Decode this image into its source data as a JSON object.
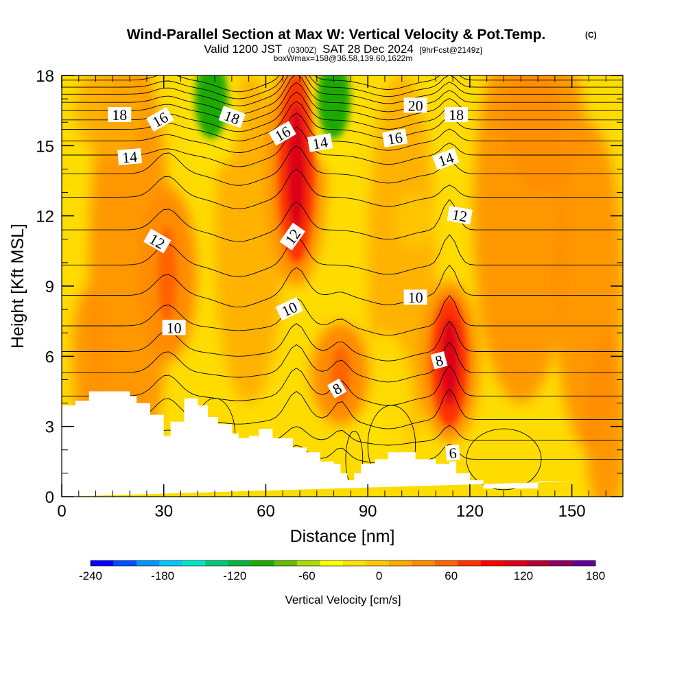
{
  "title": "Wind-Parallel Section at Max W: Vertical Velocity & Pot.Temp.",
  "title_mark": "(C)",
  "subtitle": {
    "valid": "Valid 1200 JST",
    "utc": "(0300Z)",
    "date": "SAT 28 Dec 2024",
    "fcst": "[9hrFcst@2149z]"
  },
  "box_line": "boxWmax=158@36.58,139.60,1622m",
  "chart_data": {
    "type": "heatmap",
    "xlabel": "Distance [nm]",
    "ylabel": "Height [Kft MSL]",
    "xlim": [
      0,
      165
    ],
    "ylim": [
      0,
      18
    ],
    "x_ticks": [
      0,
      30,
      60,
      90,
      120,
      150
    ],
    "y_ticks": [
      0,
      3,
      6,
      9,
      12,
      15,
      18
    ],
    "colorbar": {
      "label": "Vertical Velocity [cm/s]",
      "tick_labels": [
        -240,
        -180,
        -120,
        -60,
        0,
        60,
        120,
        180
      ],
      "range": [
        -240,
        180
      ],
      "colors": [
        "#0000ff",
        "#0050ff",
        "#0096ff",
        "#00c8ff",
        "#00e6c8",
        "#00c878",
        "#00b43c",
        "#1eaa00",
        "#64be00",
        "#aadc00",
        "#ffff00",
        "#ffe100",
        "#ffc800",
        "#ffaa00",
        "#ff8c00",
        "#ff6400",
        "#ff3200",
        "#ff0000",
        "#dc0014",
        "#b40032",
        "#8c0064",
        "#640096"
      ]
    },
    "updraft_cores": [
      {
        "x": 31,
        "y_range": [
          6.5,
          12.5
        ],
        "peak": 60
      },
      {
        "x": 69,
        "y_range": [
          10.0,
          18.0
        ],
        "peak": 110
      },
      {
        "x": 82,
        "y_range": [
          3.5,
          7.0
        ],
        "peak": 60
      },
      {
        "x": 114,
        "y_range": [
          3.0,
          8.5
        ],
        "peak": 120
      }
    ],
    "downdraft_areas": [
      {
        "x": 44,
        "y_range": [
          15.0,
          18.0
        ],
        "peak": -90
      },
      {
        "x": 80,
        "y_range": [
          15.0,
          18.0
        ],
        "peak": -90
      }
    ],
    "terrain": {
      "x": [
        0,
        4,
        4,
        8,
        8,
        20,
        20,
        22,
        22,
        26,
        26,
        30,
        30,
        32,
        32,
        36,
        36,
        40,
        40,
        43,
        43,
        46,
        46,
        50,
        50,
        52,
        52,
        55,
        55,
        58,
        58,
        62,
        62,
        68,
        68,
        72,
        72,
        76,
        76,
        80,
        80,
        82,
        82,
        84,
        84,
        86,
        86,
        88,
        88,
        92,
        92,
        96,
        96,
        104,
        104,
        110,
        110,
        114,
        114,
        116,
        116,
        120,
        120,
        124,
        124,
        130,
        130,
        134,
        134,
        140,
        140,
        146,
        146,
        150,
        150,
        165
      ],
      "y": [
        3.9,
        3.9,
        4.1,
        4.1,
        4.5,
        4.5,
        4.3,
        4.3,
        4.0,
        4.0,
        3.5,
        3.5,
        2.6,
        2.6,
        3.2,
        3.2,
        4.2,
        4.2,
        3.9,
        3.9,
        3.4,
        3.4,
        3.1,
        3.1,
        2.7,
        2.7,
        2.5,
        2.5,
        2.6,
        2.6,
        2.9,
        2.9,
        2.5,
        2.5,
        2.1,
        2.1,
        1.9,
        1.9,
        1.5,
        1.5,
        1.4,
        1.4,
        1.0,
        1.0,
        0.7,
        0.7,
        1.0,
        1.0,
        1.4,
        1.4,
        1.6,
        1.6,
        1.9,
        1.9,
        1.6,
        1.6,
        1.4,
        1.4,
        1.5,
        1.5,
        1.0,
        1.0,
        0.7,
        0.7,
        0.35,
        0.35,
        0.35,
        0.35,
        0.35,
        0.35,
        0.65,
        0.65,
        0.65,
        0.65
      ]
    },
    "theta_contours": [
      {
        "label": "6",
        "label_x": 115,
        "label_y": 1.85,
        "label_angle": -5
      },
      {
        "label": "8",
        "label_x": 81,
        "label_y": 4.6,
        "label_angle": -30
      },
      {
        "label": "8",
        "label_x": 111,
        "label_y": 5.8,
        "label_angle": -15
      },
      {
        "label": "10",
        "label_x": 33,
        "label_y": 7.2,
        "label_angle": 0
      },
      {
        "label": "10",
        "label_x": 67,
        "label_y": 8.0,
        "label_angle": -25
      },
      {
        "label": "10",
        "label_x": 104,
        "label_y": 8.5,
        "label_angle": 0
      },
      {
        "label": "12",
        "label_x": 28,
        "label_y": 10.9,
        "label_angle": 30
      },
      {
        "label": "12",
        "label_x": 68,
        "label_y": 11.1,
        "label_angle": -55
      },
      {
        "label": "12",
        "label_x": 117,
        "label_y": 12.0,
        "label_angle": 10
      },
      {
        "label": "14",
        "label_x": 20,
        "label_y": 14.5,
        "label_angle": -5
      },
      {
        "label": "14",
        "label_x": 76,
        "label_y": 15.1,
        "label_angle": -10
      },
      {
        "label": "14",
        "label_x": 113,
        "label_y": 14.4,
        "label_angle": -20
      },
      {
        "label": "16",
        "label_x": 29,
        "label_y": 16.1,
        "label_angle": -30
      },
      {
        "label": "16",
        "label_x": 65,
        "label_y": 15.5,
        "label_angle": -30
      },
      {
        "label": "16",
        "label_x": 98,
        "label_y": 15.3,
        "label_angle": -10
      },
      {
        "label": "18",
        "label_x": 17,
        "label_y": 16.3,
        "label_angle": 0
      },
      {
        "label": "18",
        "label_x": 50,
        "label_y": 16.2,
        "label_angle": 20
      },
      {
        "label": "18",
        "label_x": 116,
        "label_y": 16.3,
        "label_angle": 0
      },
      {
        "label": "20",
        "label_x": 104,
        "label_y": 16.7,
        "label_angle": 0
      }
    ]
  }
}
